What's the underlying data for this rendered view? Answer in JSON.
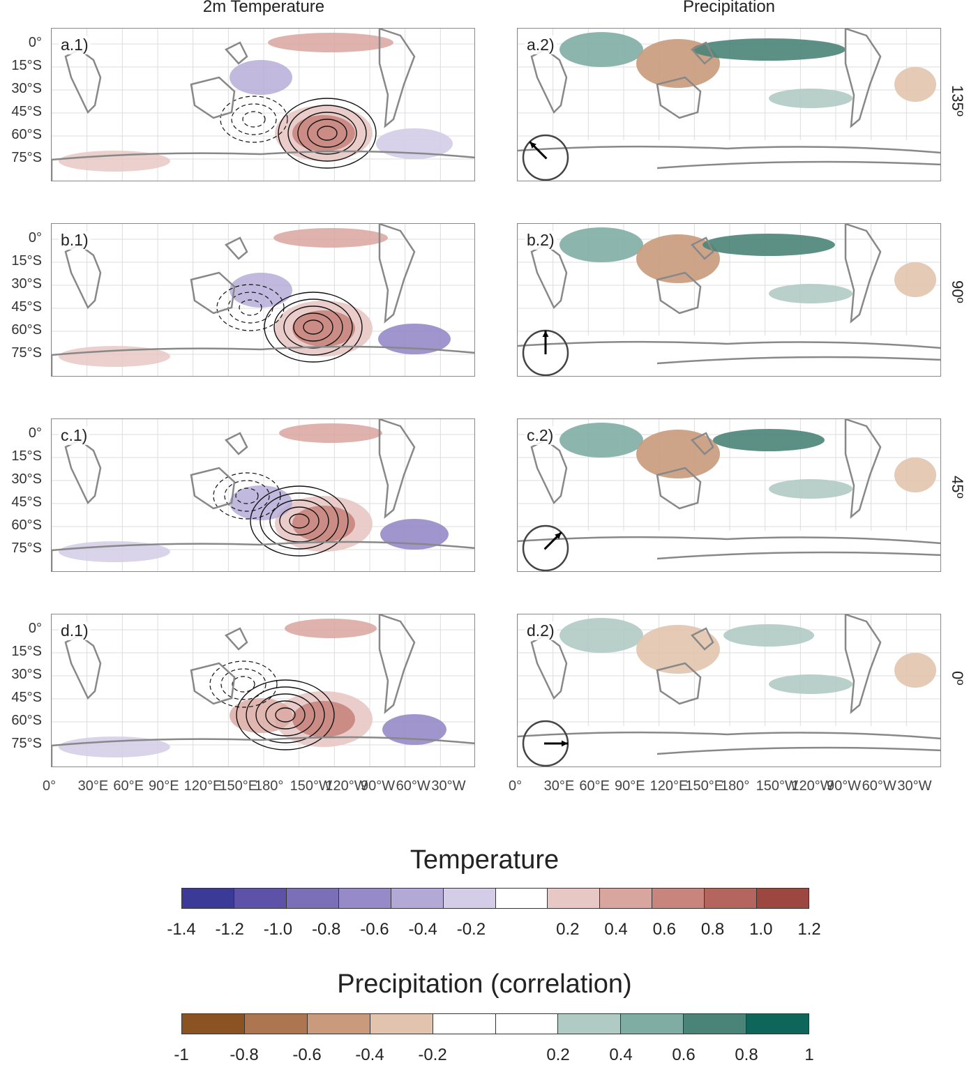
{
  "columns": {
    "left_title": "2m Temperature",
    "right_title": "Precipitation"
  },
  "rows": [
    {
      "left_label": "a.1)",
      "right_label": "a.2)",
      "angle_label": "135º",
      "arrow_angle_deg": 135
    },
    {
      "left_label": "b.1)",
      "right_label": "b.2)",
      "angle_label": "90º",
      "arrow_angle_deg": 90
    },
    {
      "left_label": "c.1)",
      "right_label": "c.2)",
      "angle_label": "45º",
      "arrow_angle_deg": 45
    },
    {
      "left_label": "d.1)",
      "right_label": "d.2)",
      "angle_label": "0º",
      "arrow_angle_deg": 0
    }
  ],
  "lat_ticks": [
    "0°",
    "15°S",
    "30°S",
    "45°S",
    "60°S",
    "75°S"
  ],
  "lon_ticks": [
    "0°",
    "30°E",
    "60°E",
    "90°E",
    "120°E",
    "150°E",
    "180°",
    "150°W",
    "120°W",
    "90°W",
    "60°W",
    "30°W"
  ],
  "chart_data": [
    {
      "type": "heatmap",
      "title": "Temperature",
      "colorbar_ticks": [
        "-1.4",
        "-1.2",
        "-1.0",
        "-0.8",
        "-0.6",
        "-0.4",
        "-0.2",
        "0.2",
        "0.4",
        "0.6",
        "0.8",
        "1.0",
        "1.2"
      ],
      "colorbar_colors": [
        "#3b3a96",
        "#5d52a8",
        "#7b6fb8",
        "#968bc8",
        "#b2a9d6",
        "#d3cde8",
        "#ffffff",
        "#e8c8c4",
        "#d9a59f",
        "#c8857d",
        "#b4665e",
        "#9c4840"
      ]
    },
    {
      "type": "heatmap",
      "title": "Precipitation (correlation)",
      "colorbar_ticks": [
        "-1",
        "-0.8",
        "-0.6",
        "-0.4",
        "-0.2",
        "0.2",
        "0.4",
        "0.6",
        "0.8",
        "1"
      ],
      "colorbar_colors": [
        "#8b5222",
        "#ad7650",
        "#c99a7c",
        "#e2c4ae",
        "#ffffff",
        "#ffffff",
        "#b0cac4",
        "#7fada4",
        "#4a8478",
        "#0e665a"
      ]
    }
  ]
}
